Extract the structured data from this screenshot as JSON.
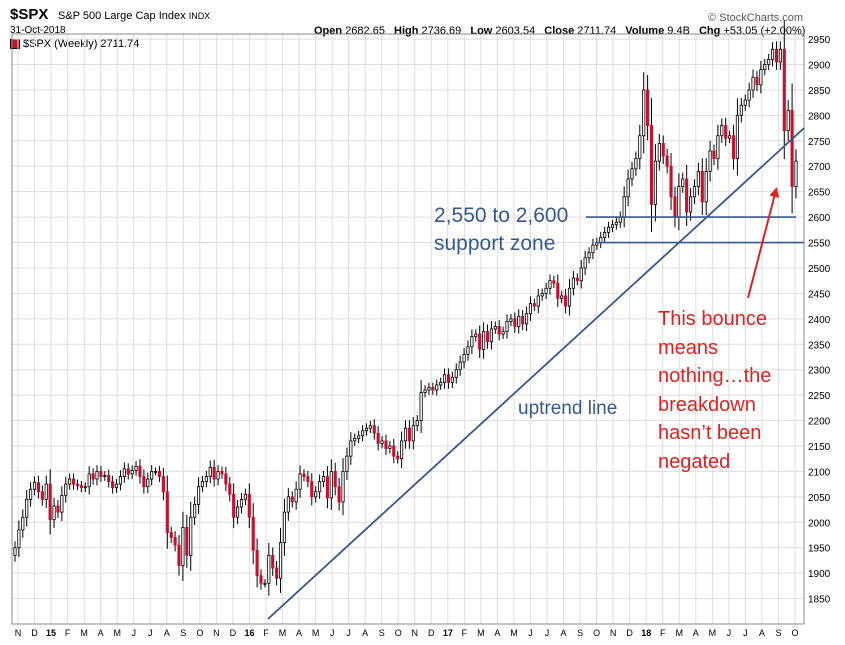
{
  "header": {
    "ticker": "$SPX",
    "name": "S&P 500 Large Cap Index",
    "exchange": "INDX",
    "date": "31-Oct-2018",
    "brand": "© StockCharts.com",
    "sublabel": "$SPX (Weekly) 2711.74",
    "open_label": "Open",
    "open": "2682.65",
    "high_label": "High",
    "high": "2736.69",
    "low_label": "Low",
    "low": "2603.54",
    "close_label": "Close",
    "close": "2711.74",
    "volume_label": "Volume",
    "volume": "9.4B",
    "chg_label": "Chg",
    "chg": "+53.05 (+2.00%)"
  },
  "annotations": {
    "support_line1": "2,550 to 2,600",
    "support_line2": "support zone",
    "uptrend": "uptrend line",
    "bounce": [
      "This bounce",
      "means",
      "nothing…the",
      "breakdown",
      "hasn’t been",
      "negated"
    ]
  },
  "colors": {
    "up_candle": "#ffffff",
    "down_candle": "#c8102e",
    "candle_outline": "#000000",
    "trendline": "#35598f",
    "support_line": "#35598f",
    "annotation_red": "#e02020",
    "grid": "#dddddd"
  },
  "chart_data": {
    "type": "candlestick",
    "title": "$SPX S&P 500 Large Cap Index",
    "timeframe": "Weekly",
    "ylim": [
      1800,
      2960
    ],
    "y_ticks": [
      1850,
      1900,
      1950,
      2000,
      2050,
      2100,
      2150,
      2200,
      2250,
      2300,
      2350,
      2400,
      2450,
      2500,
      2550,
      2600,
      2650,
      2700,
      2750,
      2800,
      2850,
      2900,
      2950
    ],
    "x_ticks": [
      "N",
      "D",
      "15",
      "F",
      "M",
      "A",
      "M",
      "J",
      "J",
      "A",
      "S",
      "O",
      "N",
      "D",
      "16",
      "F",
      "M",
      "A",
      "M",
      "J",
      "J",
      "A",
      "S",
      "O",
      "N",
      "D",
      "17",
      "F",
      "M",
      "A",
      "M",
      "J",
      "J",
      "A",
      "S",
      "O",
      "N",
      "D",
      "18",
      "F",
      "M",
      "A",
      "M",
      "J",
      "J",
      "A",
      "S",
      "O"
    ],
    "grid": true,
    "support_levels": [
      2550,
      2600
    ],
    "trendline": {
      "from": {
        "date": "Feb 2016",
        "value": 1810
      },
      "to": {
        "date": "Oct 2018",
        "value": 2775
      }
    },
    "weekly_close": [
      1950,
      1985,
      2010,
      2045,
      2065,
      2078,
      2060,
      2045,
      2075,
      2005,
      2032,
      2020,
      2053,
      2075,
      2085,
      2075,
      2072,
      2068,
      2070,
      2095,
      2085,
      2100,
      2090,
      2092,
      2080,
      2068,
      2075,
      2090,
      2105,
      2095,
      2102,
      2110,
      2090,
      2070,
      2085,
      2100,
      2100,
      2090,
      2060,
      1980,
      1970,
      1955,
      1915,
      1990,
      1935,
      2010,
      2035,
      2070,
      2080,
      2090,
      2108,
      2085,
      2100,
      2095,
      2075,
      2055,
      2010,
      2030,
      2045,
      2055,
      2010,
      1945,
      1895,
      1880,
      1880,
      1935,
      1910,
      1890,
      1960,
      2020,
      2050,
      2040,
      2065,
      2095,
      2090,
      2080,
      2050,
      2060,
      2080,
      2090,
      2048,
      2100,
      2070,
      2040,
      2100,
      2130,
      2160,
      2165,
      2170,
      2180,
      2185,
      2190,
      2175,
      2155,
      2160,
      2145,
      2150,
      2130,
      2125,
      2160,
      2185,
      2160,
      2190,
      2200,
      2255,
      2260,
      2265,
      2260,
      2270,
      2275,
      2290,
      2275,
      2285,
      2300,
      2315,
      2330,
      2345,
      2365,
      2370,
      2340,
      2375,
      2355,
      2380,
      2385,
      2370,
      2375,
      2395,
      2400,
      2385,
      2405,
      2390,
      2410,
      2430,
      2425,
      2445,
      2450,
      2460,
      2475,
      2470,
      2440,
      2445,
      2425,
      2460,
      2480,
      2475,
      2500,
      2520,
      2530,
      2545,
      2550,
      2560,
      2570,
      2580,
      2585,
      2590,
      2600,
      2640,
      2675,
      2695,
      2715,
      2760,
      2850,
      2780,
      2625,
      2710,
      2745,
      2720,
      2700,
      2640,
      2600,
      2660,
      2675,
      2610,
      2640,
      2660,
      2690,
      2630,
      2690,
      2730,
      2715,
      2760,
      2780,
      2755,
      2760,
      2715,
      2800,
      2820,
      2830,
      2850,
      2875,
      2860,
      2890,
      2900,
      2910,
      2930,
      2905,
      2930,
      2770,
      2810,
      2660,
      2710
    ]
  }
}
